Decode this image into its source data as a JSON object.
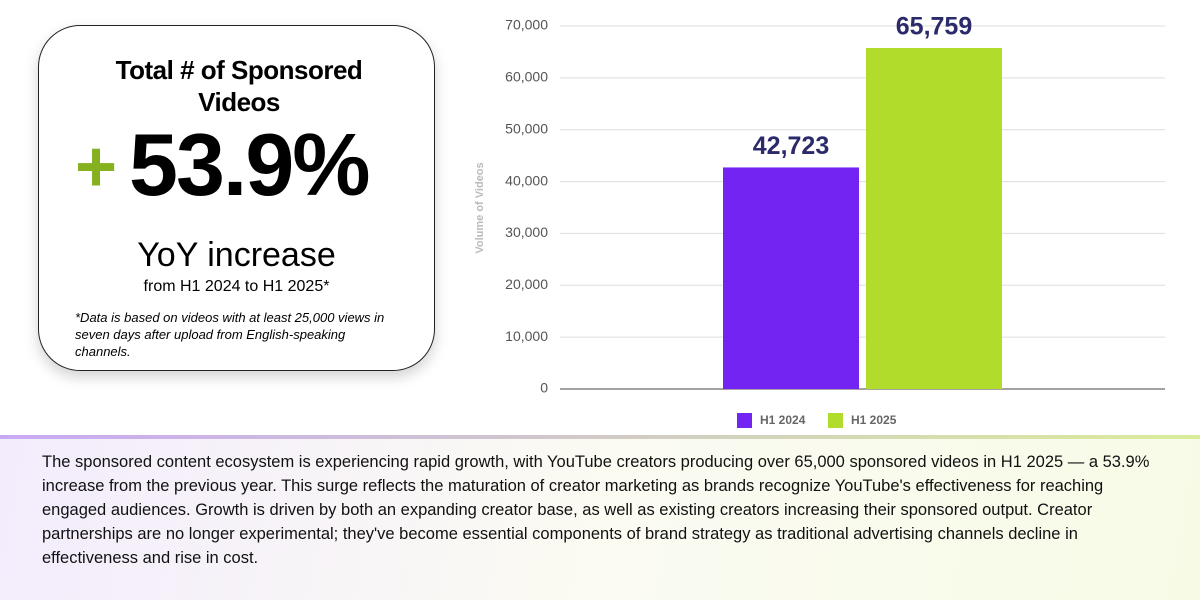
{
  "card": {
    "title": "Total # of Sponsored Videos",
    "sign": "+",
    "headline": "53.9%",
    "subtitle": "YoY increase",
    "period": "from H1 2024 to H1 2025*",
    "footnote": "*Data is based on videos with at least 25,000 views in seven days after upload from English-speaking channels."
  },
  "body": "The sponsored content ecosystem is experiencing rapid growth, with YouTube creators producing over 65,000 sponsored videos in H1 2025 — a 53.9% increase from the previous year. This surge reflects the maturation of creator marketing as brands recognize YouTube's effectiveness for reaching engaged audiences. Growth is driven by both an expanding creator base, as well as existing creators increasing their sponsored output. Creator partnerships are no longer experimental; they've become essential components of brand strategy as traditional advertising channels decline in effectiveness and rise in cost.",
  "chart_data": {
    "type": "bar",
    "y_label": "Volume of Videos",
    "categories": [
      null
    ],
    "series": [
      {
        "name": "H1 2024",
        "color": "#7424f2",
        "values": [
          42723
        ],
        "value_labels": [
          "42,723"
        ]
      },
      {
        "name": "H1 2025",
        "color": "#b2dc2c",
        "values": [
          65759
        ],
        "value_labels": [
          "65,759"
        ]
      }
    ],
    "ylim": [
      0,
      70000
    ],
    "yticks": [
      0,
      {
        "value": 10000,
        "label": "10,000"
      },
      {
        "value": 20000,
        "label": "20,000"
      },
      {
        "value": 30000,
        "label": "30,000"
      },
      {
        "value": 40000,
        "label": "40,000"
      },
      {
        "value": 50000,
        "label": "50,000"
      },
      {
        "value": 60000,
        "label": "60,000"
      },
      {
        "value": 70000,
        "label": "70,000"
      }
    ],
    "grid": true,
    "legend": "bottom"
  }
}
